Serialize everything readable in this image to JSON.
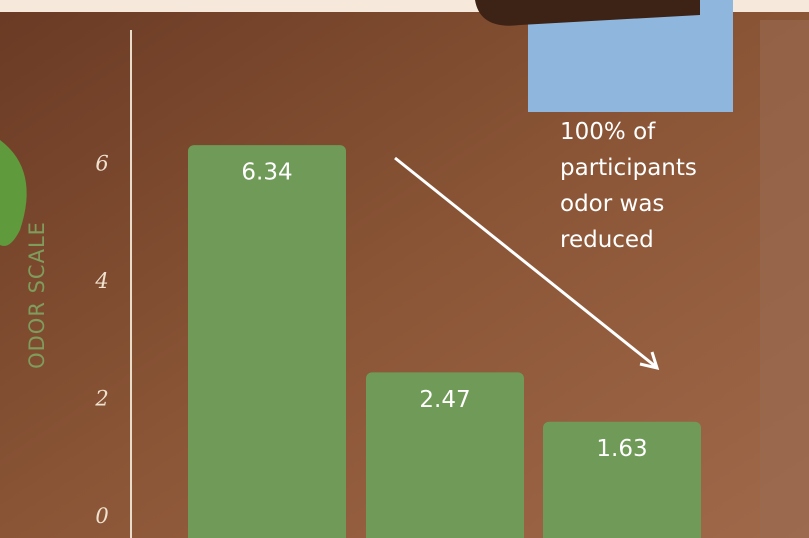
{
  "chart_data": {
    "type": "bar",
    "ylabel": "ODOR SCALE",
    "annotation": [
      "100% of",
      "participants",
      "odor was",
      "reduced"
    ],
    "categories": [
      null,
      null,
      null
    ],
    "values": [
      6.34,
      2.47,
      1.63
    ],
    "color": "#6f9a58",
    "ylim": [
      -0.35,
      8.3
    ],
    "yticks": [
      0,
      2,
      4,
      6
    ],
    "grid": false
  }
}
